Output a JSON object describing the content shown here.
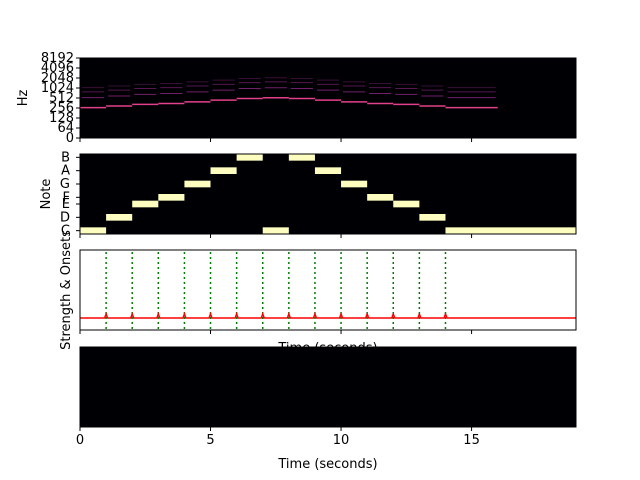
{
  "chart_data": [
    {
      "type": "heatmap",
      "panel": "spectrogram",
      "ylabel": "Hz",
      "yticks": [
        "0",
        "64",
        "128",
        "256",
        "512",
        "1024",
        "2048",
        "4096",
        "8192"
      ],
      "xlim": [
        0,
        19
      ],
      "note_tracks": [
        {
          "start": 0,
          "end": 1,
          "hz": 262
        },
        {
          "start": 1,
          "end": 2,
          "hz": 294
        },
        {
          "start": 2,
          "end": 3,
          "hz": 330
        },
        {
          "start": 3,
          "end": 4,
          "hz": 349
        },
        {
          "start": 4,
          "end": 5,
          "hz": 392
        },
        {
          "start": 5,
          "end": 6,
          "hz": 440
        },
        {
          "start": 6,
          "end": 7,
          "hz": 494
        },
        {
          "start": 7,
          "end": 8,
          "hz": 523
        },
        {
          "start": 8,
          "end": 9,
          "hz": 494
        },
        {
          "start": 9,
          "end": 10,
          "hz": 440
        },
        {
          "start": 10,
          "end": 11,
          "hz": 392
        },
        {
          "start": 11,
          "end": 12,
          "hz": 349
        },
        {
          "start": 12,
          "end": 13,
          "hz": 330
        },
        {
          "start": 13,
          "end": 14,
          "hz": 294
        },
        {
          "start": 14,
          "end": 16,
          "hz": 262
        }
      ],
      "colors": {
        "background": "#000004",
        "track": "#e2418a",
        "overtone": "#8c2981"
      }
    },
    {
      "type": "heatmap",
      "panel": "chromagram",
      "ylabel": "Note",
      "yticks": [
        "C",
        "D",
        "E",
        "F",
        "G",
        "A",
        "B"
      ],
      "note_rows": [
        "C",
        "C#",
        "D",
        "D#",
        "E",
        "F",
        "F#",
        "G",
        "G#",
        "A",
        "A#",
        "B"
      ],
      "xlim": [
        0,
        19
      ],
      "cells": [
        {
          "start": 0,
          "end": 1,
          "note": "C"
        },
        {
          "start": 1,
          "end": 2,
          "note": "D"
        },
        {
          "start": 2,
          "end": 3,
          "note": "E"
        },
        {
          "start": 3,
          "end": 4,
          "note": "F"
        },
        {
          "start": 4,
          "end": 5,
          "note": "G"
        },
        {
          "start": 5,
          "end": 6,
          "note": "A"
        },
        {
          "start": 6,
          "end": 7,
          "note": "B"
        },
        {
          "start": 7,
          "end": 8,
          "note": "C"
        },
        {
          "start": 8,
          "end": 9,
          "note": "B"
        },
        {
          "start": 9,
          "end": 10,
          "note": "A"
        },
        {
          "start": 10,
          "end": 11,
          "note": "G"
        },
        {
          "start": 11,
          "end": 12,
          "note": "F"
        },
        {
          "start": 12,
          "end": 13,
          "note": "E"
        },
        {
          "start": 13,
          "end": 14,
          "note": "D"
        },
        {
          "start": 14,
          "end": 19,
          "note": "C"
        }
      ],
      "colors": {
        "background": "#000004",
        "cell": "#fcfdbf"
      }
    },
    {
      "type": "line",
      "panel": "onsets",
      "ylabel": "Strength & Onsets",
      "xlabel": "Time (seconds)",
      "xlim": [
        0,
        19
      ],
      "onset_times": [
        1,
        2,
        3,
        4,
        5,
        6,
        7,
        8,
        9,
        10,
        11,
        12,
        13,
        14
      ],
      "strength": {
        "level": 0.15,
        "start": 0,
        "end": 19,
        "spike_times": [
          1,
          2,
          3,
          4,
          5,
          6,
          7,
          8,
          9,
          10,
          11,
          12,
          13,
          14
        ]
      },
      "colors": {
        "onset": "#008000",
        "strength": "#ff0000"
      }
    },
    {
      "type": "heatmap",
      "panel": "empty",
      "xlabel": "Time (seconds)",
      "xlim": [
        0,
        19
      ],
      "xticks": [
        0,
        5,
        10,
        15
      ],
      "colors": {
        "background": "#000004"
      }
    }
  ]
}
